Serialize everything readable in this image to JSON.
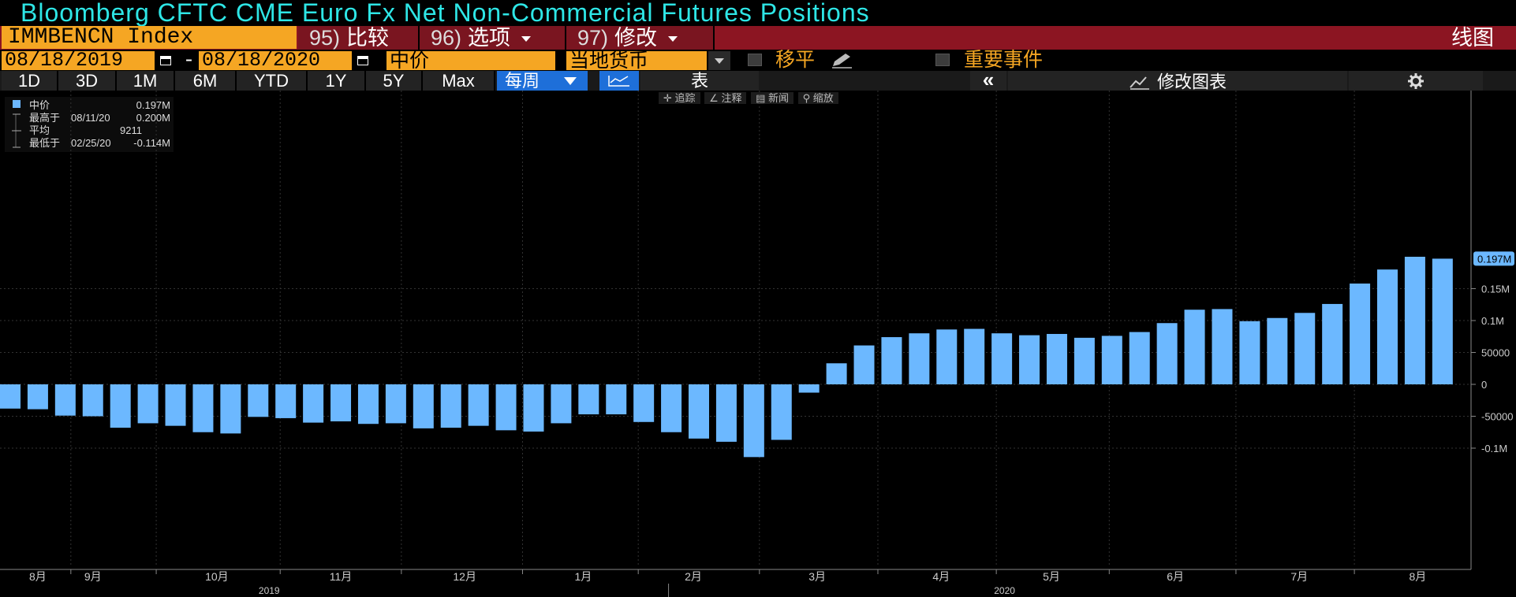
{
  "title": "Bloomberg CFTC CME Euro Fx Net Non-Commercial Futures Positions",
  "toolbar": {
    "ticker": "IMMBENCN Index",
    "compare_num": "95)",
    "compare_label": "比较",
    "options_num": "96)",
    "options_label": "选项",
    "edit_num": "97)",
    "edit_label": "修改",
    "line_chart_label": "线图"
  },
  "date_range": {
    "start": "08/18/2019",
    "separator": "-",
    "end": "08/18/2020",
    "field": "中价",
    "currency": "当地货币",
    "shift_label": "移平",
    "events_label": "重要事件"
  },
  "periods": [
    "1D",
    "3D",
    "1M",
    "6M",
    "YTD",
    "1Y",
    "5Y",
    "Max"
  ],
  "frequency": "每周",
  "table_label": "表",
  "edit_chart_label": "修改图表",
  "tools": [
    "追踪",
    "注释",
    "新闻",
    "缩放"
  ],
  "legend": {
    "series_name": "中价",
    "series_value": "0.197M",
    "high_label": "最高于",
    "high_date": "08/11/20",
    "high_value": "0.200M",
    "avg_label": "平均",
    "avg_value": "9211",
    "low_label": "最低于",
    "low_date": "02/25/20",
    "low_value": "-0.114M"
  },
  "colors": {
    "bar": "#6cb8ff",
    "accent_orange": "#f5a623",
    "title": "#2ee6e6",
    "header_red": "#8c1522"
  },
  "chart_data": {
    "type": "bar",
    "ylim": [
      -0.145,
      0.222
    ],
    "yticks": [
      {
        "value": 0.15,
        "label": "0.15M"
      },
      {
        "value": 0.1,
        "label": "0.1M"
      },
      {
        "value": 0.05,
        "label": "50000"
      },
      {
        "value": 0,
        "label": "0"
      },
      {
        "value": -0.05,
        "label": "-50000"
      },
      {
        "value": -0.1,
        "label": "-0.1M"
      }
    ],
    "last_value_label": "0.197M",
    "last_value": 0.197,
    "values": [
      -0.038,
      -0.039,
      -0.049,
      -0.05,
      -0.068,
      -0.061,
      -0.065,
      -0.075,
      -0.077,
      -0.051,
      -0.053,
      -0.06,
      -0.058,
      -0.062,
      -0.061,
      -0.069,
      -0.068,
      -0.065,
      -0.072,
      -0.074,
      -0.061,
      -0.047,
      -0.047,
      -0.059,
      -0.075,
      -0.085,
      -0.09,
      -0.114,
      -0.087,
      -0.013,
      0.033,
      0.061,
      0.074,
      0.08,
      0.086,
      0.087,
      0.08,
      0.077,
      0.079,
      0.073,
      0.076,
      0.082,
      0.096,
      0.117,
      0.118,
      0.099,
      0.104,
      0.112,
      0.126,
      0.158,
      0.18,
      0.2,
      0.197
    ],
    "month_labels": [
      {
        "label": "8月",
        "index": 1
      },
      {
        "label": "9月",
        "index": 3
      },
      {
        "label": "10月",
        "index": 7.5
      },
      {
        "label": "11月",
        "index": 12
      },
      {
        "label": "12月",
        "index": 16.5
      },
      {
        "label": "1月",
        "index": 20.8
      },
      {
        "label": "2月",
        "index": 24.8
      },
      {
        "label": "3月",
        "index": 29.3
      },
      {
        "label": "4月",
        "index": 33.8
      },
      {
        "label": "5月",
        "index": 37.8
      },
      {
        "label": "6月",
        "index": 42.3
      },
      {
        "label": "7月",
        "index": 46.8
      },
      {
        "label": "8月",
        "index": 51.1
      }
    ],
    "year_labels": [
      {
        "label": "2019",
        "index": 9.4
      },
      {
        "label": "2020",
        "index": 36.1
      }
    ]
  }
}
